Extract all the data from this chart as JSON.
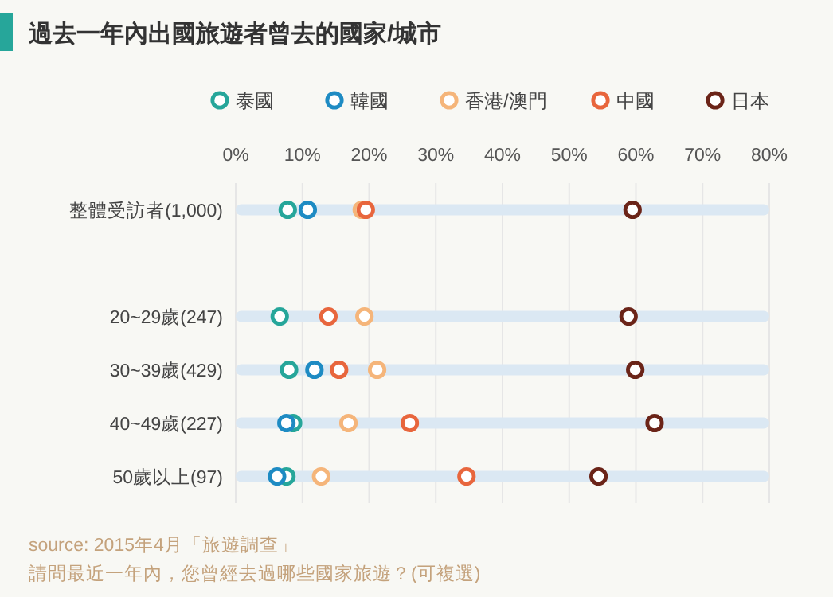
{
  "chart_data": {
    "type": "scatter",
    "orientation": "horizontal",
    "title": "過去一年內出國旅遊者曾去的國家/城市",
    "categories": [
      "整體受訪者(1,000)",
      null,
      "20~29歲(247)",
      "30~39歲(429)",
      "40~49歲(227)",
      "50歲以上(97)"
    ],
    "series": [
      {
        "type": "bar",
        "color": "#dbe8f3",
        "values": [
          80,
          null,
          80,
          80,
          80,
          80
        ]
      },
      {
        "name": "泰國",
        "color": "#26a69a",
        "values": [
          7.8,
          null,
          6.6,
          8.0,
          8.6,
          7.6
        ]
      },
      {
        "name": "韓國",
        "color": "#1e8bc3",
        "values": [
          10.8,
          null,
          null,
          11.8,
          7.6,
          6.2
        ]
      },
      {
        "name": "香港/澳門",
        "color": "#f5b57a",
        "values": [
          18.9,
          null,
          19.3,
          21.2,
          16.9,
          12.8
        ]
      },
      {
        "name": "中國",
        "color": "#e8663d",
        "values": [
          19.5,
          null,
          13.9,
          15.5,
          26.1,
          34.6
        ]
      },
      {
        "name": "日本",
        "color": "#6b2418",
        "values": [
          59.5,
          null,
          58.9,
          59.9,
          62.8,
          54.4
        ]
      }
    ],
    "xlim": [
      0,
      80
    ],
    "xticks": [
      {
        "value": 0,
        "label": "0%"
      },
      {
        "value": 10,
        "label": "10%"
      },
      {
        "value": 20,
        "label": "20%"
      },
      {
        "value": 30,
        "label": "30%"
      },
      {
        "value": 40,
        "label": "40%"
      },
      {
        "value": 50,
        "label": "50%"
      },
      {
        "value": 60,
        "label": "60%"
      },
      {
        "value": 70,
        "label": "70%"
      },
      {
        "value": 80,
        "label": "80%"
      }
    ],
    "grid": "x",
    "legend": "top",
    "marker": "circle",
    "annotations": [
      "source: 2015年4月「旅遊調查」",
      "請問最近一年內，您曾經去過哪些國家旅遊？(可複選)"
    ]
  }
}
